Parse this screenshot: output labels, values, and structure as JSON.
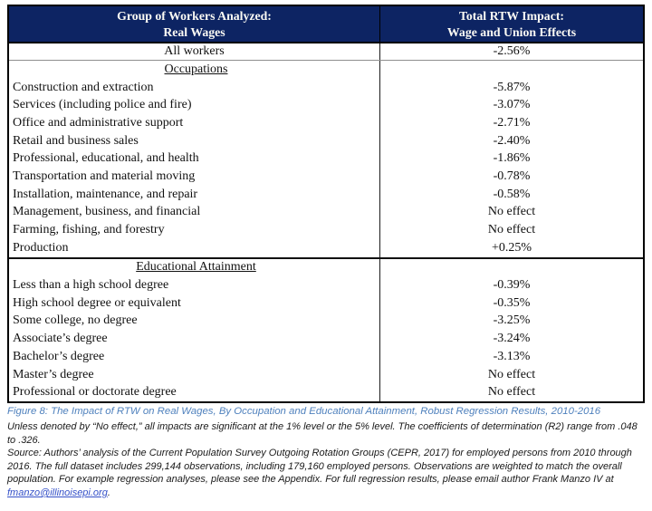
{
  "table": {
    "header": {
      "col1_line1": "Group of Workers Analyzed:",
      "col1_line2": "Real Wages",
      "col2_line1": "Total RTW Impact:",
      "col2_line2": "Wage and Union Effects"
    },
    "rows": [
      {
        "label": "All workers",
        "value": "-2.56%"
      },
      {
        "label": "Occupations",
        "value": ""
      },
      {
        "label": "Construction and extraction",
        "value": "-5.87%"
      },
      {
        "label": "Services (including police and fire)",
        "value": "-3.07%"
      },
      {
        "label": "Office and administrative support",
        "value": "-2.71%"
      },
      {
        "label": "Retail and business sales",
        "value": "-2.40%"
      },
      {
        "label": "Professional, educational, and health",
        "value": "-1.86%"
      },
      {
        "label": "Transportation and material moving",
        "value": "-0.78%"
      },
      {
        "label": "Installation, maintenance, and repair",
        "value": "-0.58%"
      },
      {
        "label": "Management, business, and financial",
        "value": "No effect"
      },
      {
        "label": "Farming, fishing, and forestry",
        "value": "No effect"
      },
      {
        "label": "Production",
        "value": "+0.25%"
      },
      {
        "label": "Educational Attainment",
        "value": ""
      },
      {
        "label": "Less than a high school degree",
        "value": "-0.39%"
      },
      {
        "label": "High school degree or equivalent",
        "value": "-0.35%"
      },
      {
        "label": "Some college, no degree",
        "value": "-3.25%"
      },
      {
        "label": "Associate’s degree",
        "value": "-3.24%"
      },
      {
        "label": "Bachelor’s degree",
        "value": "-3.13%"
      },
      {
        "label": "Master’s degree",
        "value": "No effect"
      },
      {
        "label": "Professional or doctorate degree",
        "value": "No effect"
      }
    ]
  },
  "figure": {
    "caption": "Figure 8: The Impact of RTW on Real Wages, By Occupation and Educational Attainment, Robust Regression Results, 2010-2016",
    "note": "Unless denoted by “No effect,” all impacts are significant at the 1% level or the 5% level. The coefficients of determination (R2) range from .048 to .326.",
    "source_text": "Source: Authors’ analysis of the Current Population Survey Outgoing Rotation Groups (CEPR, 2017) for employed persons from 2010 through 2016. The full dataset includes 299,144 observations, including 179,160 employed persons. Observations are weighted to match the overall population. For example regression analyses, please see the Appendix. For full regression results, please email author Frank Manzo IV at ",
    "source_email": "fmanzo@illinoisepi.org",
    "source_suffix": "."
  },
  "colors": {
    "header_bg": "#0d2463",
    "header_text": "#fbfaf4",
    "caption_blue": "#4f81bd",
    "link_blue": "#3450c8"
  }
}
